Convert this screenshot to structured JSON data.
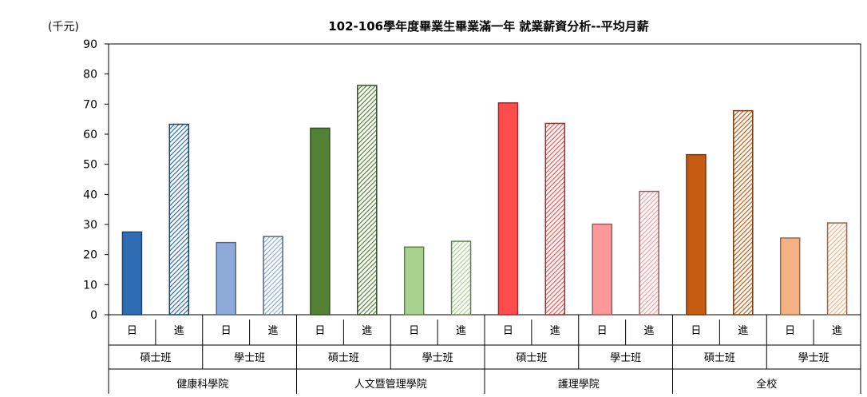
{
  "chart_data": {
    "type": "bar",
    "title": "102-106學年度畢業生畢業滿一年 就業薪資分析--平均月薪",
    "ylabel": "(千元)",
    "ylim": [
      0,
      90
    ],
    "yticks": [
      0,
      10,
      20,
      30,
      40,
      50,
      60,
      70,
      80,
      90
    ],
    "grid": false,
    "colleges": [
      {
        "name": "健康科學院",
        "programs": [
          {
            "name": "碩士班",
            "bars": [
              {
                "label": "日",
                "value": 27.5,
                "color": "#2e6db4"
              },
              {
                "label": "進",
                "value": 63.3,
                "color": "#2e6db4"
              }
            ]
          },
          {
            "name": "學士班",
            "bars": [
              {
                "label": "日",
                "value": 24.0,
                "color": "#8eaadb"
              },
              {
                "label": "進",
                "value": 26.0,
                "color": "#8eaadb"
              }
            ]
          }
        ]
      },
      {
        "name": "人文暨管理學院",
        "programs": [
          {
            "name": "碩士班",
            "bars": [
              {
                "label": "日",
                "value": 62.0,
                "color": "#548235"
              },
              {
                "label": "進",
                "value": 76.2,
                "color": "#548235"
              }
            ]
          },
          {
            "name": "學士班",
            "bars": [
              {
                "label": "日",
                "value": 22.5,
                "color": "#a9d18e"
              },
              {
                "label": "進",
                "value": 24.4,
                "color": "#a9d18e"
              }
            ]
          }
        ]
      },
      {
        "name": "護理學院",
        "programs": [
          {
            "name": "碩士班",
            "bars": [
              {
                "label": "日",
                "value": 70.4,
                "color": "#ff4d4d"
              },
              {
                "label": "進",
                "value": 63.6,
                "color": "#ff4d4d"
              }
            ]
          },
          {
            "name": "學士班",
            "bars": [
              {
                "label": "日",
                "value": 30.1,
                "color": "#ff9999"
              },
              {
                "label": "進",
                "value": 41.0,
                "color": "#ff9999"
              }
            ]
          }
        ]
      },
      {
        "name": "全校",
        "programs": [
          {
            "name": "碩士班",
            "bars": [
              {
                "label": "日",
                "value": 53.2,
                "color": "#c55a11"
              },
              {
                "label": "進",
                "value": 67.8,
                "color": "#c55a11"
              }
            ]
          },
          {
            "name": "學士班",
            "bars": [
              {
                "label": "日",
                "value": 25.5,
                "color": "#f4b183"
              },
              {
                "label": "進",
                "value": 30.5,
                "color": "#f4b183"
              }
            ]
          }
        ]
      }
    ]
  }
}
